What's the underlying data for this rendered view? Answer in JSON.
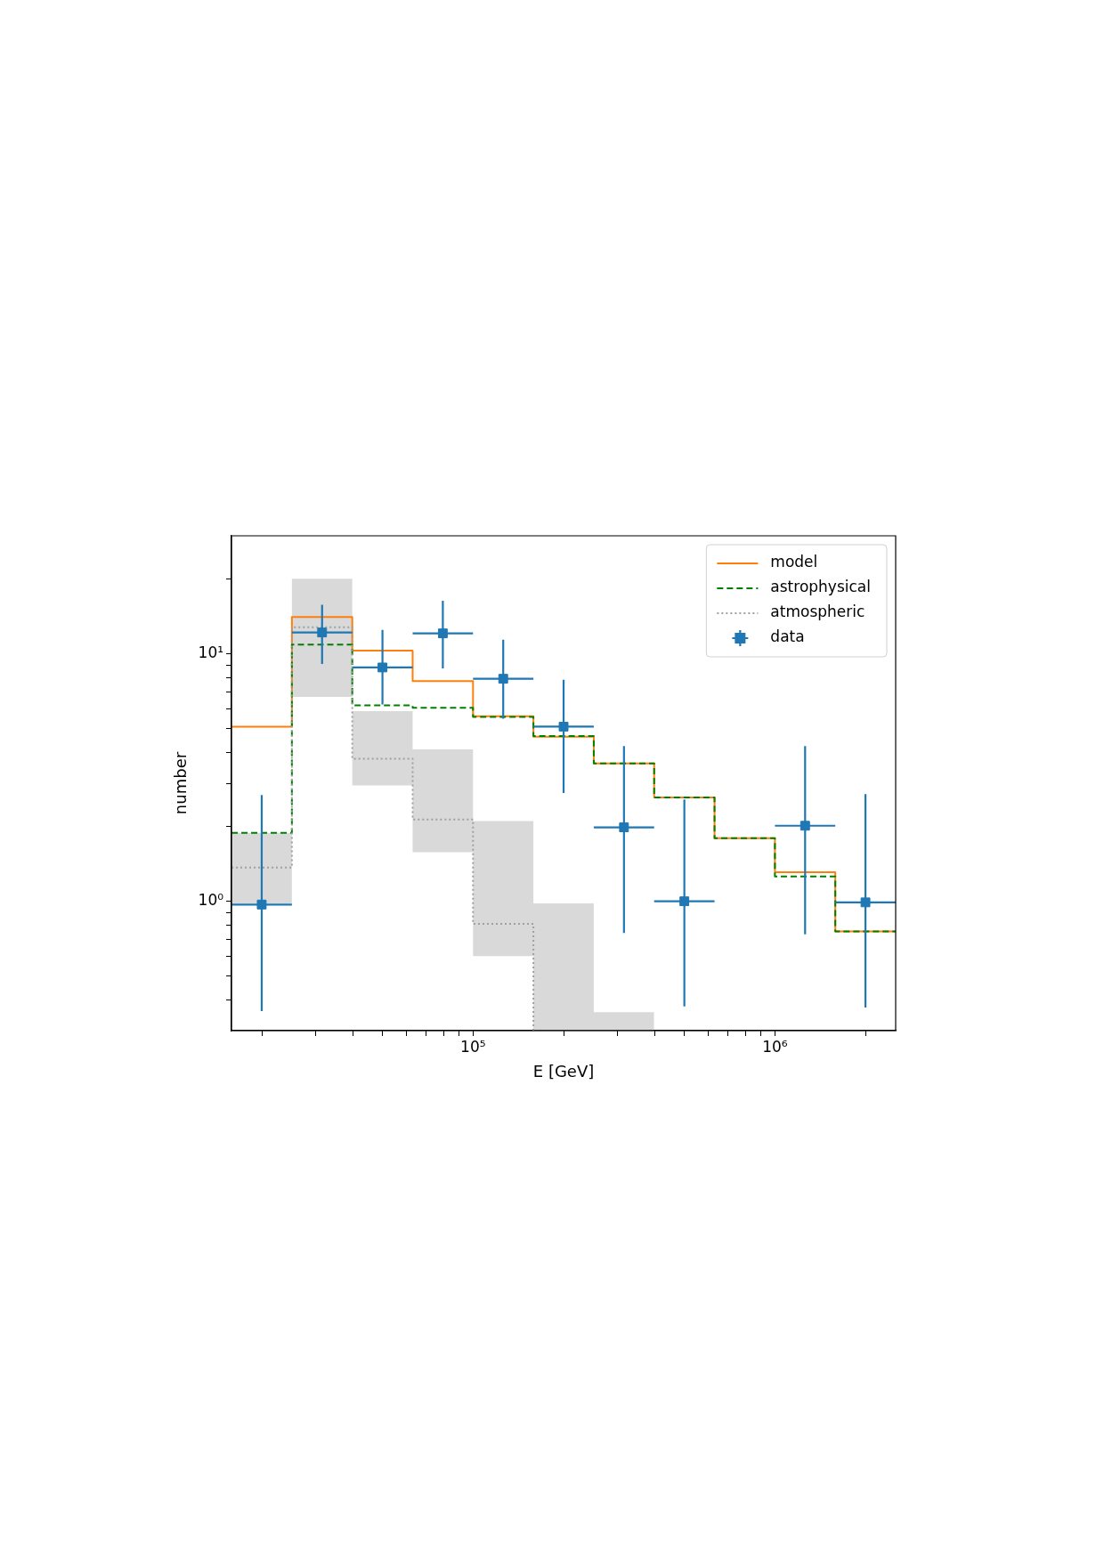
{
  "chart_data": {
    "type": "step",
    "xlabel": "E [GeV]",
    "ylabel": "number",
    "log": "xy",
    "grid": false,
    "legend": "top right",
    "xlim": [
      15849,
      2511886
    ],
    "ylim": [
      0.3,
      30
    ],
    "xticks": [
      {
        "value": 20000,
        "label": null
      },
      {
        "value": 30000,
        "label": null
      },
      {
        "value": 40000,
        "label": null
      },
      {
        "value": 50000,
        "label": null
      },
      {
        "value": 60000,
        "label": null
      },
      {
        "value": 70000,
        "label": null
      },
      {
        "value": 80000,
        "label": null
      },
      {
        "value": 90000,
        "label": null
      },
      {
        "value": 100000,
        "label": "10⁵"
      },
      {
        "value": 200000,
        "label": null
      },
      {
        "value": 300000,
        "label": null
      },
      {
        "value": 400000,
        "label": null
      },
      {
        "value": 500000,
        "label": null
      },
      {
        "value": 600000,
        "label": null
      },
      {
        "value": 700000,
        "label": null
      },
      {
        "value": 800000,
        "label": null
      },
      {
        "value": 900000,
        "label": null
      },
      {
        "value": 1000000,
        "label": "10⁶"
      },
      {
        "value": 2000000,
        "label": null
      }
    ],
    "yticks": [
      {
        "value": 0.4,
        "label": null
      },
      {
        "value": 0.5,
        "label": null
      },
      {
        "value": 0.6,
        "label": null
      },
      {
        "value": 0.7,
        "label": null
      },
      {
        "value": 0.8,
        "label": null
      },
      {
        "value": 0.9,
        "label": null
      },
      {
        "value": 1,
        "label": "10⁰"
      },
      {
        "value": 2,
        "label": null
      },
      {
        "value": 3,
        "label": null
      },
      {
        "value": 4,
        "label": null
      },
      {
        "value": 5,
        "label": null
      },
      {
        "value": 6,
        "label": null
      },
      {
        "value": 7,
        "label": null
      },
      {
        "value": 8,
        "label": null
      },
      {
        "value": 9,
        "label": null
      },
      {
        "value": 10,
        "label": "10¹"
      },
      {
        "value": 20,
        "label": null
      }
    ],
    "series": [
      {
        "name": "model",
        "color": "#ff7f0e",
        "line_style": "solid",
        "x": [
          15849,
          25119,
          39811,
          63096,
          100000,
          158489,
          251189,
          398107,
          630957,
          1000000,
          1584893,
          2511886
        ],
        "values": [
          5.08,
          14.1,
          10.3,
          7.76,
          5.59,
          4.62,
          3.61,
          2.63,
          1.8,
          1.31,
          0.756,
          0.756
        ]
      },
      {
        "name": "astrophysical",
        "color": "#008000",
        "line_style": "dashed",
        "x": [
          15849,
          25119,
          39811,
          63096,
          100000,
          158489,
          251189,
          398107,
          630957,
          1000000,
          1584893,
          2511886
        ],
        "values": [
          1.89,
          10.9,
          6.19,
          6.05,
          5.56,
          4.65,
          3.61,
          2.63,
          1.8,
          1.26,
          0.756,
          0.756
        ]
      },
      {
        "name": "atmospheric",
        "color": "#a0a0a0",
        "line_style": "dotted",
        "x": [
          15849,
          25119,
          39811,
          63096,
          100000,
          158489,
          251189,
          398107
        ],
        "values": [
          1.37,
          12.8,
          3.77,
          2.14,
          0.81,
          0.3,
          null,
          null
        ],
        "lower": [
          0.98,
          6.7,
          2.94,
          1.58,
          0.6,
          0.3,
          0.3,
          0.3
        ],
        "upper": [
          1.89,
          20.1,
          5.87,
          4.11,
          2.11,
          0.98,
          0.356,
          0.356
        ]
      },
      {
        "name": "data",
        "type": "scatter",
        "color": "#1f77b4",
        "marker": "square",
        "x": [
          19953,
          31623,
          50119,
          79433,
          125893,
          199526,
          316228,
          501187,
          794328,
          1258925,
          1995262
        ],
        "values": [
          0.97,
          12.2,
          8.81,
          12.1,
          7.93,
          5.08,
          1.99,
          1.0,
          null,
          2.02,
          0.99
        ],
        "errors": [
          [
            0.36,
            2.69
          ],
          [
            9.1,
            15.8
          ],
          [
            6.25,
            12.5
          ],
          [
            8.73,
            16.4
          ],
          [
            5.47,
            11.4
          ],
          [
            2.74,
            7.85
          ],
          [
            0.744,
            4.24
          ],
          [
            0.376,
            2.58
          ],
          null,
          [
            0.736,
            4.24
          ],
          [
            0.372,
            2.71
          ]
        ],
        "xerrors": [
          [
            15849,
            25119
          ],
          [
            25119,
            39811
          ],
          [
            39811,
            63096
          ],
          [
            63096,
            100000
          ],
          [
            100000,
            158489
          ],
          [
            158489,
            251189
          ],
          [
            251189,
            398107
          ],
          [
            398107,
            630957
          ],
          null,
          [
            1000000,
            1584893
          ],
          [
            1584893,
            2511886
          ]
        ]
      }
    ]
  }
}
